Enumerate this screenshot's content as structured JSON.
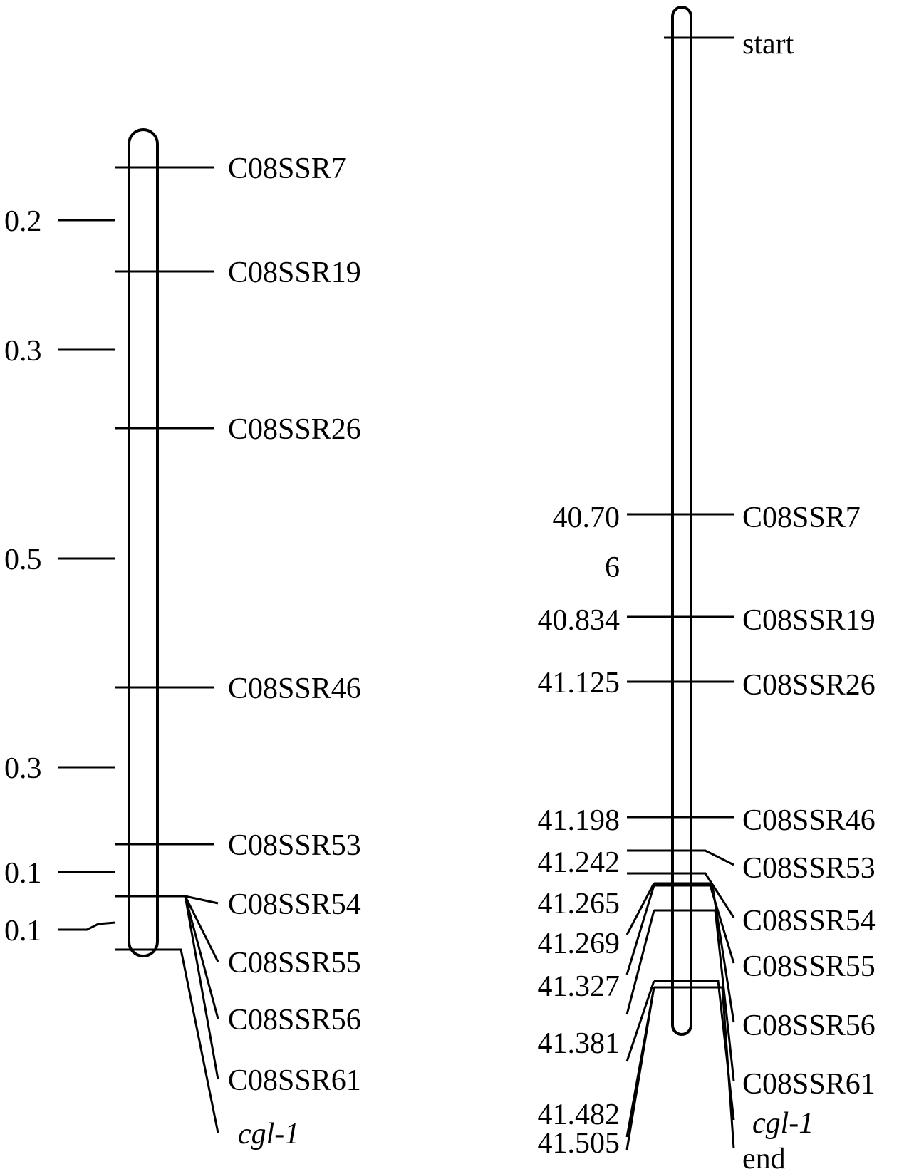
{
  "left_map": {
    "markers": [
      "C08SSR7",
      "C08SSR19",
      "C08SSR26",
      "C08SSR46",
      "C08SSR53",
      "C08SSR54",
      "C08SSR55",
      "C08SSR56",
      "C08SSR61"
    ],
    "gene": "cgl-1",
    "intervals": [
      "0.2",
      "0.3",
      "0.5",
      "0.3",
      "0.1",
      "0.1"
    ]
  },
  "right_map": {
    "start_label": "start",
    "end_label": "end",
    "markers": [
      "C08SSR7",
      "C08SSR19",
      "C08SSR26",
      "C08SSR46",
      "C08SSR53",
      "C08SSR54",
      "C08SSR55",
      "C08SSR56",
      "C08SSR61"
    ],
    "gene": "cgl-1",
    "positions": [
      "40.70",
      "6",
      "40.834",
      "41.125",
      "41.198",
      "41.242",
      "41.265",
      "41.269",
      "41.327",
      "41.381",
      "41.482",
      "41.505"
    ]
  }
}
